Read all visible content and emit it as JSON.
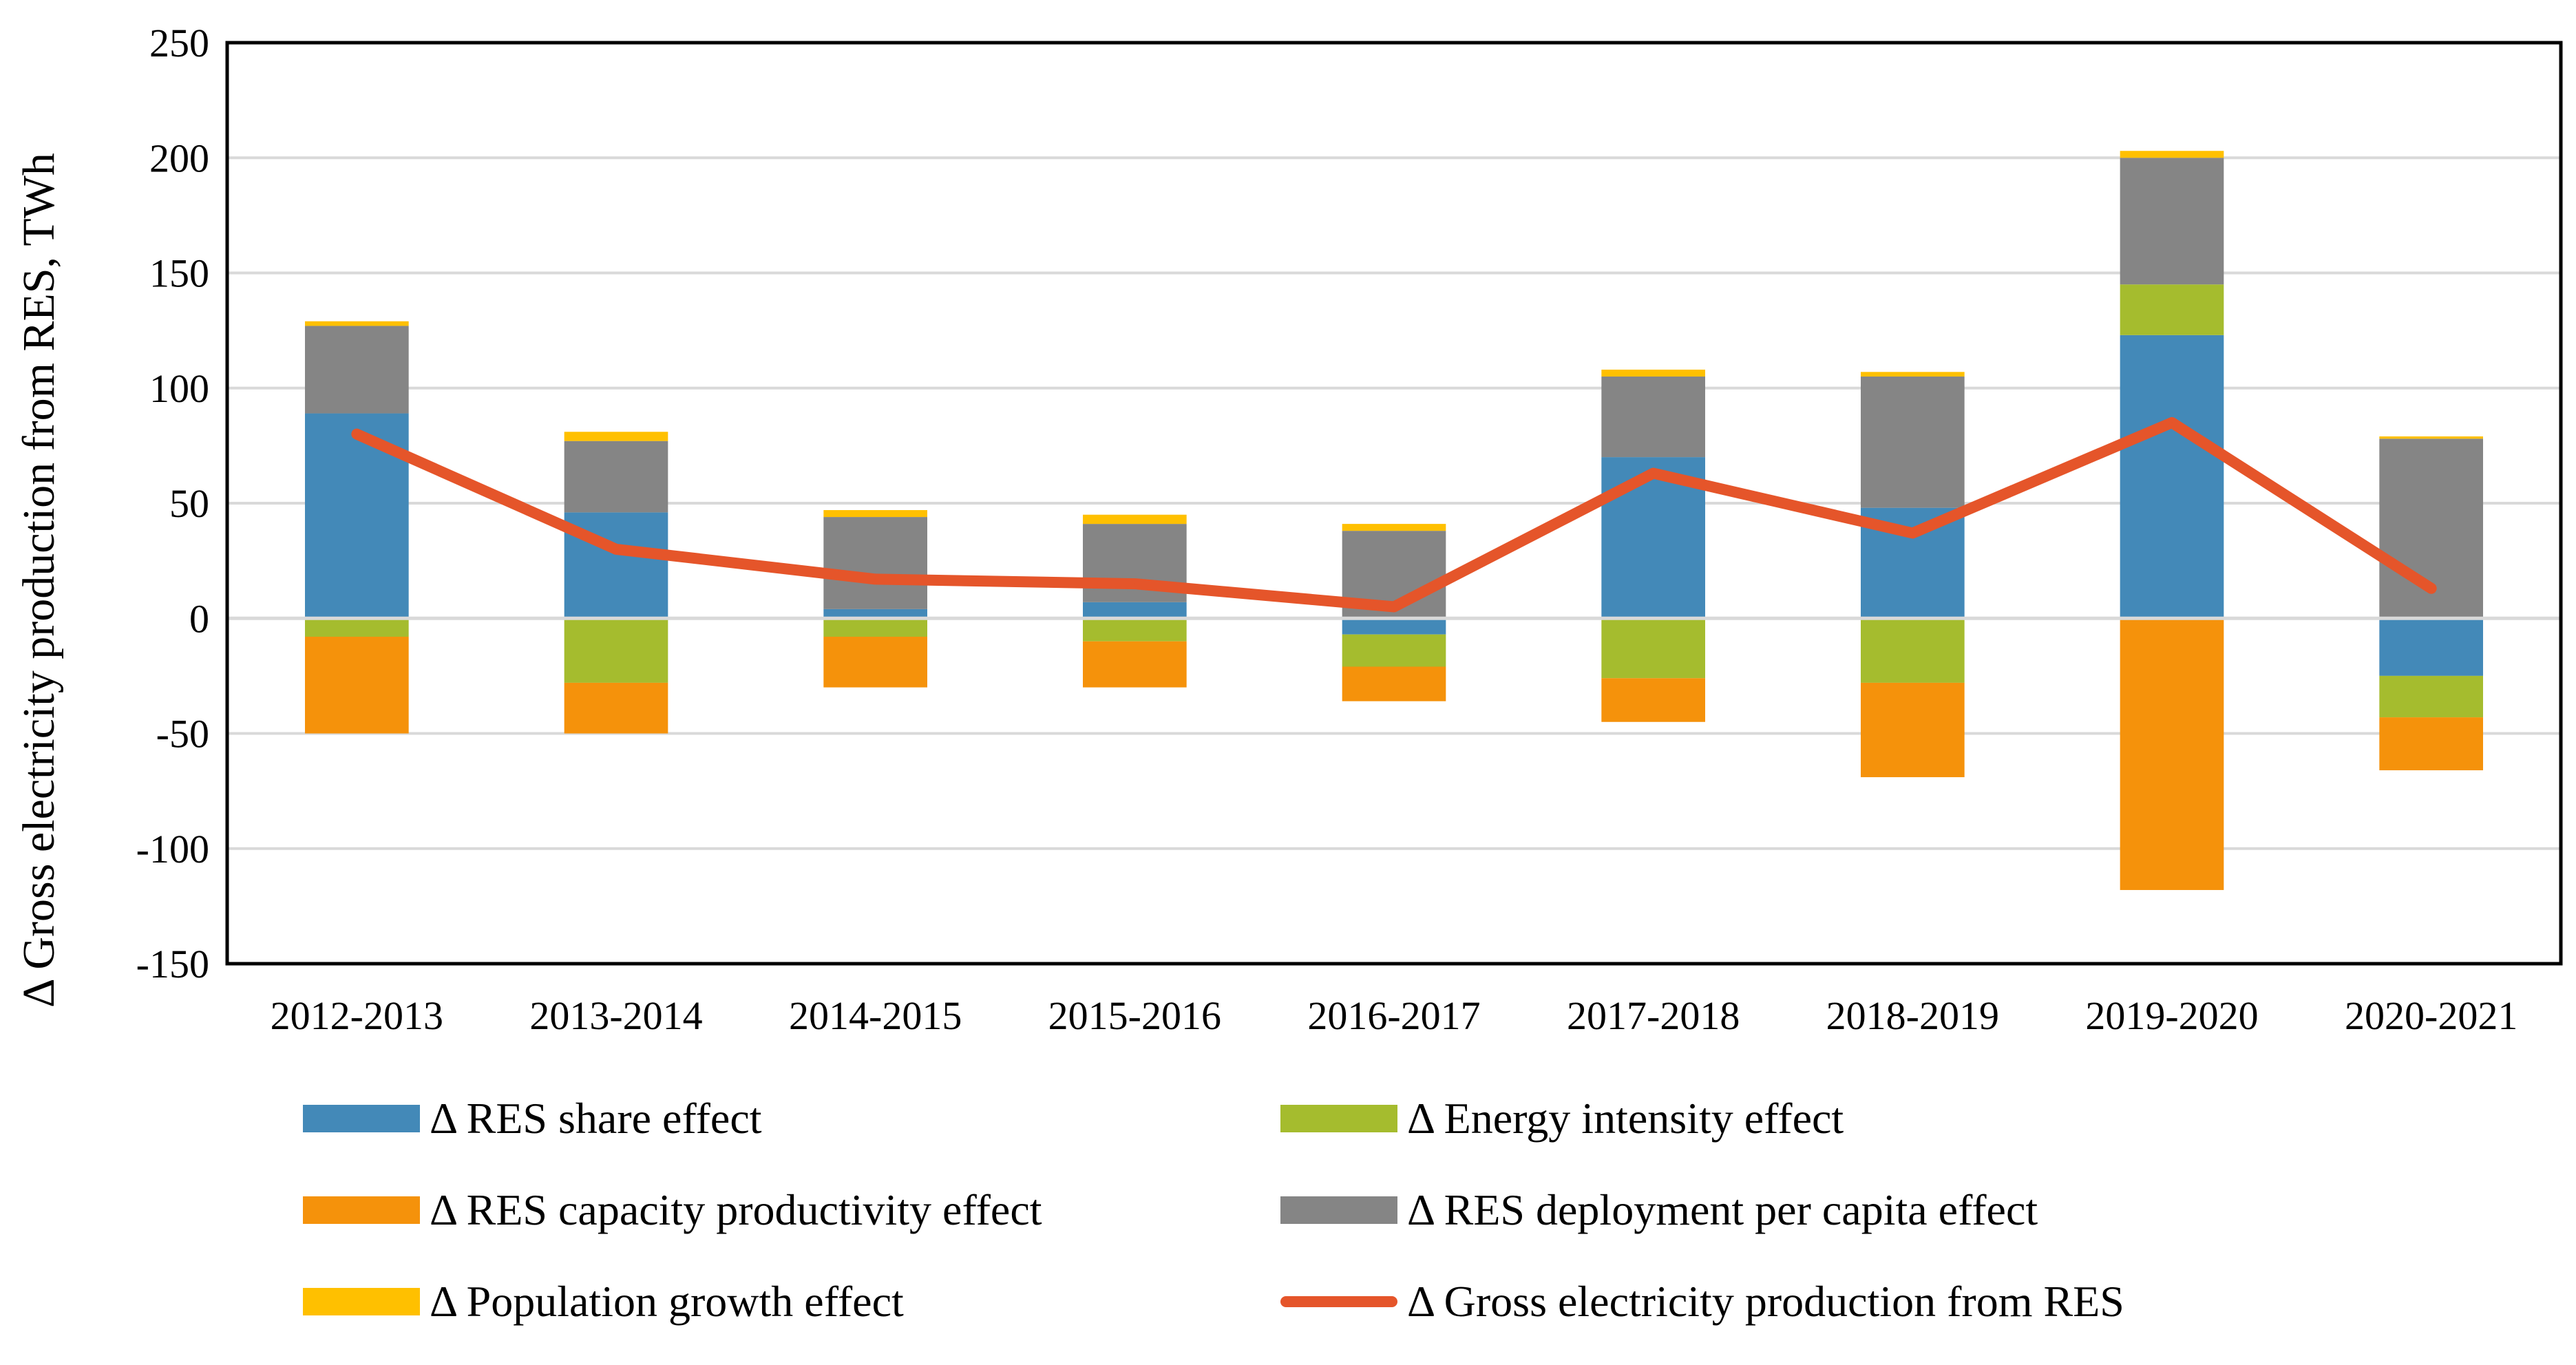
{
  "chart_data": {
    "type": "bar",
    "stacked": true,
    "title": "",
    "xlabel": "",
    "ylabel": "Δ Gross electricity production from RES, TWh",
    "ylim": [
      -150,
      250
    ],
    "yticks": [
      -150,
      -100,
      -50,
      0,
      50,
      100,
      150,
      200,
      250
    ],
    "grid": true,
    "legend_position": "bottom",
    "categories": [
      "2012-2013",
      "2013-2014",
      "2014-2015",
      "2015-2016",
      "2016-2017",
      "2017-2018",
      "2018-2019",
      "2019-2020",
      "2020-2021"
    ],
    "series": [
      {
        "name": "Δ RES share effect",
        "kind": "bar",
        "color": "#4389B8",
        "values": [
          89,
          46,
          4,
          7,
          -7,
          70,
          48,
          123,
          -25
        ]
      },
      {
        "name": "Δ Energy intensity effect",
        "kind": "bar",
        "color": "#A5BC2E",
        "values": [
          -8,
          -28,
          -8,
          -10,
          -14,
          -26,
          -28,
          22,
          -18
        ]
      },
      {
        "name": "Δ RES capacity productivity effect",
        "kind": "bar",
        "color": "#F5920B",
        "values": [
          -42,
          -22,
          -22,
          -20,
          -15,
          -19,
          -41,
          -118,
          -23
        ]
      },
      {
        "name": "Δ RES deployment per capita effect",
        "kind": "bar",
        "color": "#858585",
        "values": [
          38,
          31,
          40,
          34,
          38,
          35,
          57,
          55,
          78
        ]
      },
      {
        "name": "Δ Population growth effect",
        "kind": "bar",
        "color": "#FFC000",
        "values": [
          2,
          4,
          3,
          4,
          3,
          3,
          2,
          3,
          1
        ]
      },
      {
        "name": "Δ Gross electricity production from RES",
        "kind": "line",
        "color": "#E5552A",
        "values": [
          80,
          30,
          17,
          15,
          5,
          63,
          37,
          85,
          13
        ]
      }
    ]
  }
}
